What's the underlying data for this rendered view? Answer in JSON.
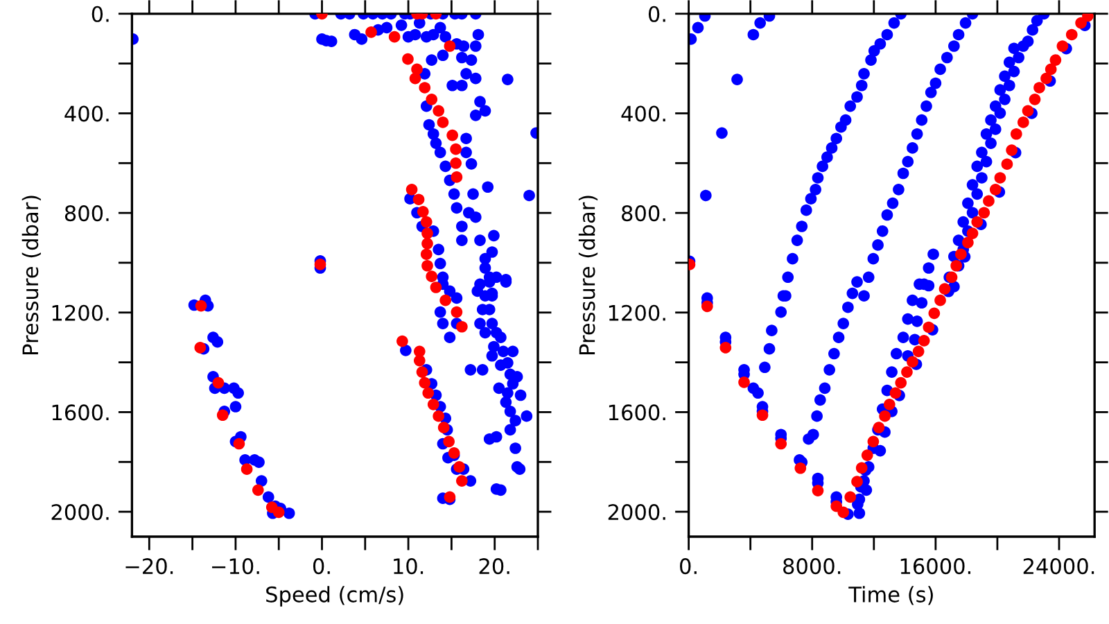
{
  "chart_data": [
    {
      "type": "scatter",
      "xlabel": "Speed (cm/s)",
      "ylabel": "Pressure (dbar)",
      "xlim": [
        -22,
        25
      ],
      "ylim": [
        2100,
        0
      ],
      "xticks": [
        {
          "value": -20,
          "label": "−20."
        },
        {
          "value": -15,
          "label": null
        },
        {
          "value": -10,
          "label": "−10."
        },
        {
          "value": -5,
          "label": null
        },
        {
          "value": 0,
          "label": "0."
        },
        {
          "value": 5,
          "label": null
        },
        {
          "value": 10,
          "label": "10."
        },
        {
          "value": 15,
          "label": null
        },
        {
          "value": 20,
          "label": "20."
        },
        {
          "value": 25,
          "label": null
        }
      ],
      "yticks": [
        {
          "value": 0,
          "label": "0."
        },
        {
          "value": 200,
          "label": null
        },
        {
          "value": 400,
          "label": "400."
        },
        {
          "value": 600,
          "label": null
        },
        {
          "value": 800,
          "label": "800."
        },
        {
          "value": 1000,
          "label": null
        },
        {
          "value": 1200,
          "label": "1200."
        },
        {
          "value": 1400,
          "label": null
        },
        {
          "value": 1600,
          "label": "1600."
        },
        {
          "value": 1800,
          "label": null
        },
        {
          "value": 2000,
          "label": "2000."
        }
      ],
      "grid": false,
      "marker": "circle",
      "series": [
        {
          "color": "#0000ff",
          "x": [
            -21.9,
            0.0,
            0.5,
            1.1,
            -0.8,
            2.2,
            3.2,
            4.8,
            5.9,
            7.0,
            8.0,
            9.6,
            10.2,
            12.6,
            14.0,
            15.4,
            16.2,
            17.8,
            3.8,
            4.6,
            6.5,
            7.5,
            9.2,
            10.0,
            10.8,
            11.3,
            12.1,
            12.9,
            13.7,
            14.3,
            15.6,
            16.4,
            17.8,
            18.1,
            11.9,
            12.7,
            14.0,
            16.2,
            17.3,
            16.7,
            16.2,
            15.1,
            17.8,
            18.3,
            18.9,
            17.8,
            21.5,
            24.8,
            24.0,
            12.1,
            12.4,
            12.9,
            13.2,
            13.7,
            14.3,
            14.8,
            15.3,
            15.6,
            16.2,
            16.2,
            17.0,
            17.5,
            16.7,
            16.7,
            17.3,
            19.2,
            17.8,
            18.3,
            18.9,
            19.4,
            19.7,
            21.3,
            19.9,
            19.7,
            18.9,
            10.2,
            11.0,
            11.6,
            12.9,
            13.5,
            13.7,
            14.0,
            14.8,
            14.0,
            13.7,
            14.0,
            14.8,
            15.6,
            15.6,
            -0.2,
            -0.2,
            18.3,
            19.4,
            20.2,
            18.0,
            18.9,
            19.7,
            21.3,
            18.6,
            19.4,
            18.3,
            19.7,
            18.9,
            20.2,
            19.9,
            21.0,
            20.7,
            19.7,
            22.1,
            21.5,
            20.7,
            21.8,
            22.1,
            20.5,
            21.5,
            22.6,
            21.3,
            23.0,
            21.8,
            23.7,
            22.4,
            21.8,
            17.2,
            18.6,
            19.4,
            20.2,
            22.4,
            22.6,
            22.9,
            20.2,
            20.7,
            9.7,
            12.1,
            12.7,
            13.2,
            13.7,
            14.3,
            14.5,
            15.3,
            15.6,
            16.4,
            17.2,
            14.0,
            14.8,
            14.0,
            14.6,
            -14.8,
            -13.5,
            -13.2,
            -13.7,
            -12.6,
            -12.1,
            -12.6,
            -12.4,
            -11.3,
            -10.2,
            -9.7,
            -11.3,
            -10.0,
            -10.0,
            -9.4,
            -8.9,
            -7.8,
            -7.3,
            -7.0,
            -6.2,
            -5.4,
            -4.8,
            -3.8,
            -5.7
          ],
          "values": [
            102,
            102,
            108,
            111,
            0,
            0,
            0,
            0,
            0,
            0,
            0,
            0,
            0,
            0,
            0,
            0,
            0,
            0,
            84,
            102,
            65,
            56,
            46,
            93,
            84,
            37,
            93,
            84,
            56,
            93,
            121,
            130,
            130,
            84,
            241,
            186,
            167,
            176,
            186,
            241,
            288,
            288,
            260,
            353,
            390,
            408,
            264,
            479,
            730,
            371,
            446,
            483,
            520,
            557,
            613,
            669,
            724,
            780,
            854,
            910,
            799,
            724,
            501,
            557,
            603,
            696,
            817,
            910,
            984,
            1058,
            1133,
            1068,
            891,
            957,
            1021,
            743,
            799,
            854,
            873,
            947,
            1003,
            1058,
            1114,
            1086,
            1198,
            1244,
            1300,
            1244,
            1142,
            993,
            1021,
            1086,
            1077,
            1058,
            1114,
            1133,
            1123,
            1077,
            1188,
            1188,
            1244,
            1244,
            1281,
            1281,
            1337,
            1356,
            1300,
            1374,
            1356,
            1402,
            1411,
            1448,
            1486,
            1504,
            1523,
            1458,
            1560,
            1532,
            1597,
            1616,
            1634,
            1671,
            1430,
            1430,
            1708,
            1699,
            1745,
            1820,
            1829,
            1909,
            1913,
            1352,
            1430,
            1486,
            1532,
            1578,
            1625,
            1671,
            1773,
            1829,
            1829,
            1876,
            1946,
            1950,
            1727,
            1783,
            1170,
            1151,
            1173,
            1346,
            1300,
            1318,
            1458,
            1504,
            1504,
            1504,
            1523,
            1597,
            1578,
            1718,
            1699,
            1792,
            1792,
            1801,
            1876,
            1941,
            1978,
            1987,
            2006,
            2006
          ]
        },
        {
          "color": "#ff0000",
          "x": [
            0.0,
            11.0,
            11.6,
            13.2,
            5.7,
            8.4,
            14.8,
            9.95,
            11.0,
            10.8,
            11.9,
            12.7,
            13.5,
            14.0,
            15.1,
            15.5,
            15.5,
            15.6,
            10.4,
            11.2,
            11.7,
            12.1,
            12.2,
            12.2,
            12.1,
            12.2,
            12.7,
            13.2,
            14.3,
            15.6,
            16.2,
            -0.2,
            9.3,
            11.3,
            11.3,
            11.6,
            11.9,
            12.3,
            12.9,
            13.5,
            14.1,
            14.7,
            15.3,
            15.9,
            16.2,
            14.8,
            -14.0,
            -14.1,
            -12.0,
            -11.5,
            -9.6,
            -8.7,
            -7.4,
            -5.8,
            -5.0
          ],
          "values": [
            0,
            0,
            0,
            0,
            74,
            93,
            130,
            182,
            223,
            260,
            297,
            344,
            390,
            436,
            488,
            544,
            600,
            656,
            706,
            746,
            795,
            836,
            882,
            923,
            966,
            1012,
            1055,
            1099,
            1151,
            1198,
            1257,
            1007,
            1315,
            1356,
            1393,
            1439,
            1482,
            1523,
            1569,
            1616,
            1662,
            1718,
            1764,
            1820,
            1876,
            1941,
            1173,
            1341,
            1482,
            1612,
            1727,
            1829,
            1913,
            1982,
            2002
          ]
        }
      ]
    },
    {
      "type": "scatter",
      "xlabel": "Time (s)",
      "ylabel": "Pressure (dbar)",
      "xlim": [
        0,
        26300
      ],
      "ylim": [
        2100,
        0
      ],
      "xticks": [
        {
          "value": 0,
          "label": "0."
        },
        {
          "value": 4000,
          "label": null
        },
        {
          "value": 8000,
          "label": "8000."
        },
        {
          "value": 12000,
          "label": null
        },
        {
          "value": 16000,
          "label": "16000."
        },
        {
          "value": 20000,
          "label": null
        },
        {
          "value": 24000,
          "label": "24000."
        }
      ],
      "yticks": [
        {
          "value": 0,
          "label": "0."
        },
        {
          "value": 200,
          "label": null
        },
        {
          "value": 400,
          "label": "400."
        },
        {
          "value": 600,
          "label": null
        },
        {
          "value": 800,
          "label": "800."
        },
        {
          "value": 1000,
          "label": null
        },
        {
          "value": 1200,
          "label": "1200."
        },
        {
          "value": 1400,
          "label": null
        },
        {
          "value": 1600,
          "label": "1600."
        },
        {
          "value": 1800,
          "label": null
        },
        {
          "value": 2000,
          "label": "2000."
        }
      ],
      "grid": false,
      "marker": "circle",
      "series": [
        {
          "color": "#0000ff",
          "x": [
            150,
            600,
            1050,
            4190,
            4630,
            5230,
            3140,
            2150,
            1110,
            60,
            1200,
            1200,
            2390,
            2390,
            3590,
            3590,
            4190,
            4490,
            4780,
            4780,
            5980,
            5980,
            7180,
            7330,
            8370,
            8370,
            9570,
            9570,
            10320,
            11060,
            13750,
            13310,
            12860,
            12410,
            12020,
            11810,
            11360,
            11210,
            10910,
            10470,
            10170,
            9870,
            9570,
            9270,
            8970,
            8670,
            8370,
            8220,
            7920,
            7620,
            7330,
            7030,
            6730,
            6430,
            6130,
            6280,
            5980,
            5380,
            5230,
            4930,
            18390,
            17940,
            17490,
            17190,
            16740,
            16300,
            16000,
            15700,
            15400,
            15100,
            14800,
            14500,
            14200,
            13900,
            13600,
            13220,
            12860,
            12560,
            12260,
            11960,
            11660,
            11360,
            10910,
            10610,
            10320,
            10020,
            9720,
            9420,
            9120,
            8820,
            8520,
            8310,
            8070,
            7770,
            23020,
            22570,
            22280,
            21980,
            21680,
            21080,
            21380,
            20780,
            21080,
            20480,
            20780,
            20180,
            20480,
            19880,
            20180,
            19580,
            19880,
            19290,
            19580,
            18990,
            19290,
            18690,
            18990,
            18390,
            18690,
            18090,
            18390,
            17790,
            18090,
            17490,
            17790,
            17190,
            17490,
            16890,
            17190,
            15850,
            15550,
            15250,
            14950,
            15550,
            14500,
            15100,
            14200,
            14800,
            13900,
            14650,
            13460,
            14200,
            13160,
            12860,
            12560,
            13160,
            12260,
            12710,
            11960,
            12410,
            11660,
            11360,
            11510,
            11060,
            25670,
            24470,
            23420,
            22230,
            21180,
            20130,
            18940,
            17890,
            16840,
            15800,
            14750,
            13650,
            11460,
            11160,
            10950
          ],
          "values": [
            102,
            56,
            9,
            84,
            37,
            9,
            264,
            479,
            730,
            994,
            1142,
            1161,
            1300,
            1318,
            1430,
            1448,
            1504,
            1523,
            1578,
            1597,
            1690,
            1705,
            1792,
            1801,
            1866,
            1885,
            1941,
            1960,
            2010,
            2006,
            0,
            37,
            84,
            121,
            149,
            186,
            241,
            288,
            334,
            371,
            427,
            455,
            501,
            539,
            576,
            613,
            659,
            706,
            743,
            789,
            854,
            910,
            984,
            1058,
            1133,
            1133,
            1198,
            1272,
            1346,
            1420,
            0,
            37,
            84,
            130,
            176,
            223,
            279,
            316,
            371,
            427,
            483,
            539,
            594,
            641,
            706,
            761,
            808,
            873,
            929,
            984,
            1058,
            1133,
            1077,
            1123,
            1179,
            1244,
            1300,
            1365,
            1430,
            1504,
            1551,
            1616,
            1690,
            1708,
            0,
            28,
            65,
            111,
            130,
            139,
            176,
            195,
            232,
            251,
            288,
            306,
            344,
            371,
            399,
            427,
            464,
            483,
            520,
            557,
            594,
            613,
            659,
            687,
            724,
            761,
            799,
            836,
            873,
            910,
            947,
            975,
            1012,
            1058,
            1096,
            966,
            1021,
            1086,
            1086,
            1092,
            1151,
            1161,
            1226,
            1235,
            1300,
            1309,
            1365,
            1374,
            1439,
            1513,
            1588,
            1597,
            1671,
            1680,
            1745,
            1755,
            1820,
            1876,
            1913,
            1950,
            47,
            140,
            270,
            400,
            558,
            716,
            846,
            976,
            1115,
            1269,
            1408,
            1533,
            1834,
            1900,
            1970
          ]
        },
        {
          "color": "#ff0000",
          "x": [
            60,
            1200,
            2390,
            3590,
            4780,
            5980,
            7240,
            8370,
            9570,
            10020,
            25860,
            25420,
            24820,
            24220,
            23770,
            23470,
            23170,
            22720,
            22430,
            21980,
            21680,
            21230,
            20930,
            20630,
            20180,
            19880,
            19440,
            19140,
            18690,
            18390,
            18090,
            17640,
            17340,
            17040,
            16590,
            16300,
            15910,
            15550,
            15250,
            14890,
            14500,
            14140,
            13750,
            13400,
            13010,
            12710,
            12320,
            11960,
            11570,
            11210,
            10910,
            10470
          ],
          "values": [
            1007,
            1175,
            1341,
            1480,
            1612,
            1727,
            1825,
            1915,
            1978,
            2002,
            9,
            37,
            84,
            130,
            186,
            223,
            260,
            297,
            344,
            390,
            436,
            483,
            548,
            604,
            659,
            706,
            752,
            799,
            836,
            882,
            919,
            966,
            1012,
            1058,
            1105,
            1151,
            1203,
            1259,
            1313,
            1356,
            1398,
            1439,
            1482,
            1523,
            1569,
            1616,
            1662,
            1718,
            1773,
            1824,
            1879,
            1941
          ]
        }
      ]
    }
  ]
}
